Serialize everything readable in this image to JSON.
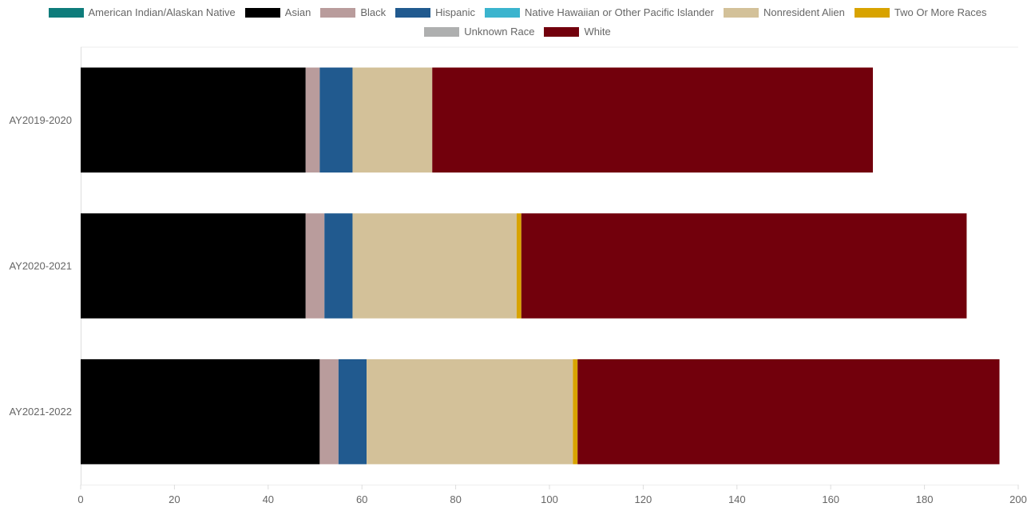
{
  "chart_data": {
    "type": "bar",
    "orientation": "horizontal",
    "stacked": true,
    "categories": [
      "AY2019-2020",
      "AY2020-2021",
      "AY2021-2022"
    ],
    "series": [
      {
        "name": "American Indian/Alaskan Native",
        "color": "#0e7c7b",
        "values": [
          0,
          0,
          0
        ]
      },
      {
        "name": "Asian",
        "color": "#000000",
        "values": [
          48,
          48,
          51
        ]
      },
      {
        "name": "Black",
        "color": "#b99c9c",
        "values": [
          3,
          4,
          4
        ]
      },
      {
        "name": "Hispanic",
        "color": "#215a8f",
        "values": [
          7,
          6,
          6
        ]
      },
      {
        "name": "Native Hawaiian or Other Pacific Islander",
        "color": "#3bb4ce",
        "values": [
          0,
          0,
          0
        ]
      },
      {
        "name": "Nonresident Alien",
        "color": "#d3c199",
        "values": [
          17,
          35,
          44
        ]
      },
      {
        "name": "Two Or More Races",
        "color": "#d8a300",
        "values": [
          0,
          1,
          1
        ]
      },
      {
        "name": "Unknown Race",
        "color": "#aeafaf",
        "values": [
          0,
          0,
          0
        ]
      },
      {
        "name": "White",
        "color": "#72000c",
        "values": [
          94,
          95,
          90
        ]
      }
    ],
    "xlim": [
      0,
      200
    ],
    "xticks": [
      "0",
      "20",
      "40",
      "60",
      "80",
      "100",
      "120",
      "140",
      "160",
      "180",
      "200"
    ],
    "grid": false,
    "legend_position": "top",
    "title": "",
    "xlabel": "",
    "ylabel": ""
  }
}
